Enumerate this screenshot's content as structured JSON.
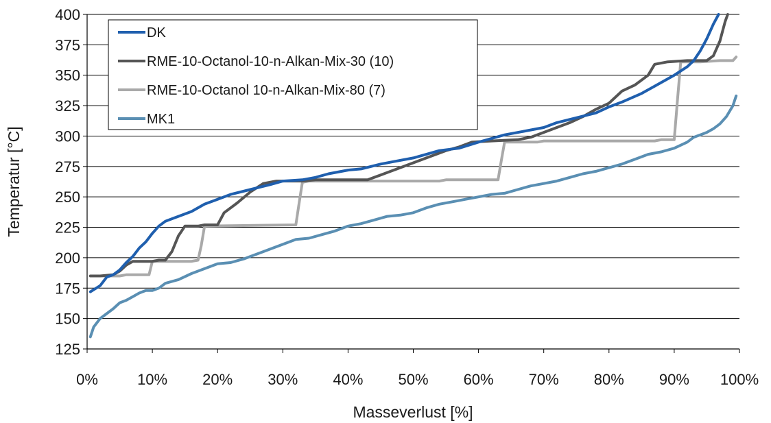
{
  "chart_data": {
    "type": "line",
    "title": "",
    "xlabel": "Masseverlust [%]",
    "ylabel": "Temperatur [°C]",
    "xlim": [
      0,
      100
    ],
    "ylim": [
      125,
      400
    ],
    "x_ticks": [
      0,
      10,
      20,
      30,
      40,
      50,
      60,
      70,
      80,
      90,
      100
    ],
    "x_tick_labels": [
      "0%",
      "10%",
      "20%",
      "30%",
      "40%",
      "50%",
      "60%",
      "70%",
      "80%",
      "90%",
      "100%"
    ],
    "y_ticks": [
      125,
      150,
      175,
      200,
      225,
      250,
      275,
      300,
      325,
      350,
      375,
      400
    ],
    "y_tick_labels": [
      "125",
      "150",
      "175",
      "200",
      "225",
      "250",
      "275",
      "300",
      "325",
      "350",
      "375",
      "400"
    ],
    "grid": "horizontal",
    "legend_position": "top-left",
    "series": [
      {
        "name": "DK",
        "color": "#1f5fae",
        "points": [
          [
            0.5,
            172
          ],
          [
            2,
            177
          ],
          [
            3,
            184
          ],
          [
            4,
            186
          ],
          [
            5,
            190
          ],
          [
            6,
            196
          ],
          [
            7,
            201
          ],
          [
            8,
            208
          ],
          [
            9,
            213
          ],
          [
            10,
            220
          ],
          [
            11,
            226
          ],
          [
            12,
            230
          ],
          [
            14,
            234
          ],
          [
            16,
            238
          ],
          [
            18,
            244
          ],
          [
            20,
            248
          ],
          [
            22,
            252
          ],
          [
            25,
            256
          ],
          [
            28,
            260
          ],
          [
            30,
            263
          ],
          [
            33,
            264
          ],
          [
            35,
            266
          ],
          [
            37,
            269
          ],
          [
            40,
            272
          ],
          [
            42,
            273
          ],
          [
            45,
            277
          ],
          [
            47,
            279
          ],
          [
            50,
            282
          ],
          [
            52,
            285
          ],
          [
            54,
            288
          ],
          [
            57,
            290
          ],
          [
            60,
            295
          ],
          [
            62,
            298
          ],
          [
            64,
            301
          ],
          [
            67,
            304
          ],
          [
            70,
            307
          ],
          [
            72,
            311
          ],
          [
            75,
            315
          ],
          [
            78,
            319
          ],
          [
            80,
            324
          ],
          [
            82,
            328
          ],
          [
            85,
            335
          ],
          [
            88,
            344
          ],
          [
            90,
            350
          ],
          [
            92,
            357
          ],
          [
            93,
            362
          ],
          [
            94,
            370
          ],
          [
            95,
            380
          ],
          [
            96,
            392
          ],
          [
            96.8,
            400
          ]
        ]
      },
      {
        "name": "RME-10-Octanol-10-n-Alkan-Mix-30 (10)",
        "color": "#555555",
        "points": [
          [
            0.5,
            185
          ],
          [
            2,
            185
          ],
          [
            4,
            186
          ],
          [
            5,
            189
          ],
          [
            6,
            194
          ],
          [
            7,
            197
          ],
          [
            10,
            197
          ],
          [
            11,
            198
          ],
          [
            12,
            198
          ],
          [
            13,
            205
          ],
          [
            14,
            218
          ],
          [
            15,
            226
          ],
          [
            17,
            226
          ],
          [
            18,
            227
          ],
          [
            20,
            227
          ],
          [
            21,
            237
          ],
          [
            23,
            245
          ],
          [
            25,
            254
          ],
          [
            27,
            261
          ],
          [
            29,
            263
          ],
          [
            33,
            263
          ],
          [
            35,
            264
          ],
          [
            43,
            264
          ],
          [
            45,
            268
          ],
          [
            48,
            274
          ],
          [
            50,
            278
          ],
          [
            52,
            282
          ],
          [
            55,
            288
          ],
          [
            57,
            291
          ],
          [
            59,
            295
          ],
          [
            62,
            296
          ],
          [
            66,
            297
          ],
          [
            68,
            299
          ],
          [
            70,
            303
          ],
          [
            72,
            307
          ],
          [
            74,
            311
          ],
          [
            76,
            316
          ],
          [
            78,
            322
          ],
          [
            80,
            327
          ],
          [
            82,
            337
          ],
          [
            84,
            342
          ],
          [
            86,
            350
          ],
          [
            87,
            359
          ],
          [
            89,
            361
          ],
          [
            92,
            362
          ],
          [
            95,
            362
          ],
          [
            96,
            366
          ],
          [
            97,
            378
          ],
          [
            97.8,
            394
          ],
          [
            98.2,
            400
          ]
        ]
      },
      {
        "name": "RME-10-Octanol 10-n-Alkan-Mix-80 (7)",
        "color": "#a9a9a9",
        "points": [
          [
            0.5,
            185
          ],
          [
            5,
            185
          ],
          [
            6,
            186
          ],
          [
            9.5,
            186
          ],
          [
            10,
            197
          ],
          [
            16,
            197
          ],
          [
            17,
            198
          ],
          [
            17.5,
            210
          ],
          [
            18,
            226
          ],
          [
            32,
            227
          ],
          [
            32.5,
            245
          ],
          [
            33,
            262
          ],
          [
            34,
            263
          ],
          [
            54,
            263
          ],
          [
            55,
            264
          ],
          [
            63,
            264
          ],
          [
            63.5,
            280
          ],
          [
            64,
            295
          ],
          [
            65,
            295
          ],
          [
            69,
            295
          ],
          [
            70,
            296
          ],
          [
            87,
            296
          ],
          [
            88,
            297
          ],
          [
            90,
            297
          ],
          [
            90.5,
            330
          ],
          [
            91,
            361
          ],
          [
            94,
            361
          ],
          [
            97,
            362
          ],
          [
            98,
            362
          ],
          [
            99,
            362
          ],
          [
            99.5,
            365
          ]
        ]
      },
      {
        "name": "MK1",
        "color": "#5a8fb3",
        "points": [
          [
            0.5,
            135
          ],
          [
            1,
            143
          ],
          [
            2,
            150
          ],
          [
            3,
            154
          ],
          [
            4,
            158
          ],
          [
            5,
            163
          ],
          [
            6,
            165
          ],
          [
            7,
            168
          ],
          [
            8,
            171
          ],
          [
            9,
            173
          ],
          [
            10,
            173
          ],
          [
            11,
            175
          ],
          [
            12,
            179
          ],
          [
            14,
            182
          ],
          [
            16,
            187
          ],
          [
            18,
            191
          ],
          [
            20,
            195
          ],
          [
            22,
            196
          ],
          [
            24,
            199
          ],
          [
            26,
            203
          ],
          [
            28,
            207
          ],
          [
            30,
            211
          ],
          [
            32,
            215
          ],
          [
            34,
            216
          ],
          [
            36,
            219
          ],
          [
            38,
            222
          ],
          [
            40,
            226
          ],
          [
            42,
            228
          ],
          [
            44,
            231
          ],
          [
            46,
            234
          ],
          [
            48,
            235
          ],
          [
            50,
            237
          ],
          [
            52,
            241
          ],
          [
            54,
            244
          ],
          [
            56,
            246
          ],
          [
            58,
            248
          ],
          [
            60,
            250
          ],
          [
            62,
            252
          ],
          [
            64,
            253
          ],
          [
            66,
            256
          ],
          [
            68,
            259
          ],
          [
            70,
            261
          ],
          [
            72,
            263
          ],
          [
            74,
            266
          ],
          [
            76,
            269
          ],
          [
            78,
            271
          ],
          [
            80,
            274
          ],
          [
            82,
            277
          ],
          [
            84,
            281
          ],
          [
            86,
            285
          ],
          [
            88,
            287
          ],
          [
            90,
            290
          ],
          [
            92,
            295
          ],
          [
            93,
            299
          ],
          [
            94,
            301
          ],
          [
            95,
            303
          ],
          [
            96,
            306
          ],
          [
            97,
            310
          ],
          [
            98,
            316
          ],
          [
            99,
            325
          ],
          [
            99.5,
            333
          ]
        ]
      }
    ]
  }
}
